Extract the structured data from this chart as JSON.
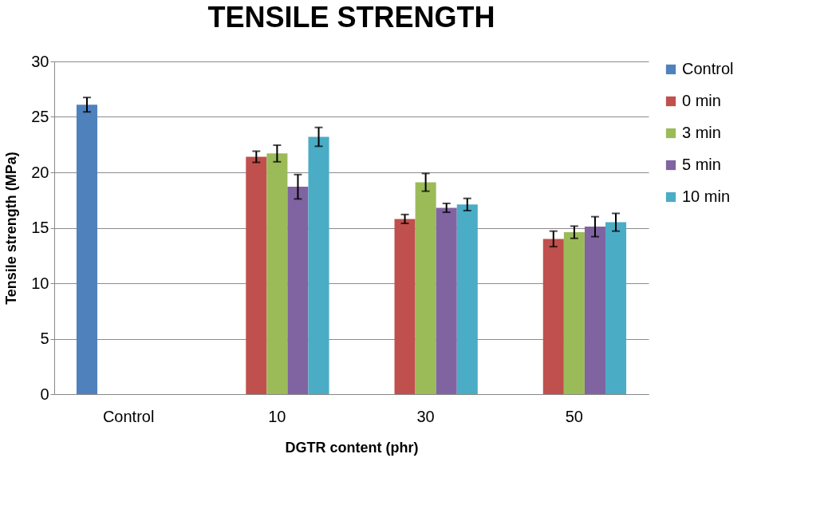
{
  "chart_data": {
    "type": "bar",
    "title": "TENSILE STRENGTH",
    "xlabel": "DGTR content (phr)",
    "ylabel": "Tensile strength (MPa)",
    "categories": [
      "Control",
      "10",
      "30",
      "50"
    ],
    "series": [
      {
        "name": "Control",
        "color": "#4f81bd",
        "values": [
          26.1,
          null,
          null,
          null
        ],
        "errors": [
          0.65,
          null,
          null,
          null
        ]
      },
      {
        "name": "0 min",
        "color": "#c0504d",
        "values": [
          null,
          21.4,
          15.8,
          14.0
        ],
        "errors": [
          null,
          0.5,
          0.4,
          0.7
        ]
      },
      {
        "name": "3 min",
        "color": "#9bbb59",
        "values": [
          null,
          21.7,
          19.1,
          14.6
        ],
        "errors": [
          null,
          0.75,
          0.8,
          0.55
        ]
      },
      {
        "name": "5 min",
        "color": "#8064a2",
        "values": [
          null,
          18.7,
          16.8,
          15.1
        ],
        "errors": [
          null,
          1.1,
          0.4,
          0.9
        ]
      },
      {
        "name": "10 min",
        "color": "#4bacc6",
        "values": [
          null,
          23.2,
          17.1,
          15.5
        ],
        "errors": [
          null,
          0.85,
          0.55,
          0.8
        ]
      }
    ],
    "ylim": [
      0,
      30
    ],
    "yticks": [
      0,
      5,
      10,
      15,
      20,
      25,
      30
    ],
    "grid": "y",
    "legend": "right"
  }
}
